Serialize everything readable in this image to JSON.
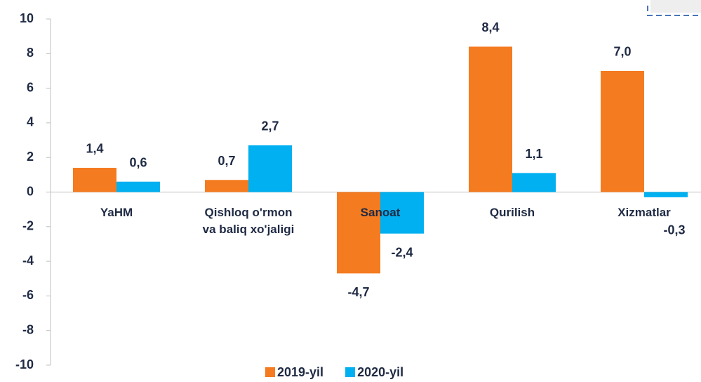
{
  "chart_data": {
    "type": "bar",
    "categories": [
      "YaHM",
      "Qishloq o'rmon\nva baliq xo'jaligi",
      "Sanoat",
      "Qurilish",
      "Xizmatlar"
    ],
    "series": [
      {
        "name": "2019-yil",
        "color": "#f47b20",
        "values": [
          1.4,
          0.7,
          -4.7,
          8.4,
          7.0
        ],
        "value_labels": [
          "1,4",
          "0,7",
          "-4,7",
          "8,4",
          "7,0"
        ]
      },
      {
        "name": "2020-yil",
        "color": "#00b0f0",
        "values": [
          0.6,
          2.7,
          -2.4,
          1.1,
          -0.3
        ],
        "value_labels": [
          "0,6",
          "2,7",
          "-2,4",
          "1,1",
          "-0,3"
        ]
      }
    ],
    "ylim": [
      -10,
      10
    ],
    "yticks": [
      -10,
      -8,
      -6,
      -4,
      -2,
      0,
      2,
      4,
      6,
      8,
      10
    ],
    "legend": "bottom"
  }
}
